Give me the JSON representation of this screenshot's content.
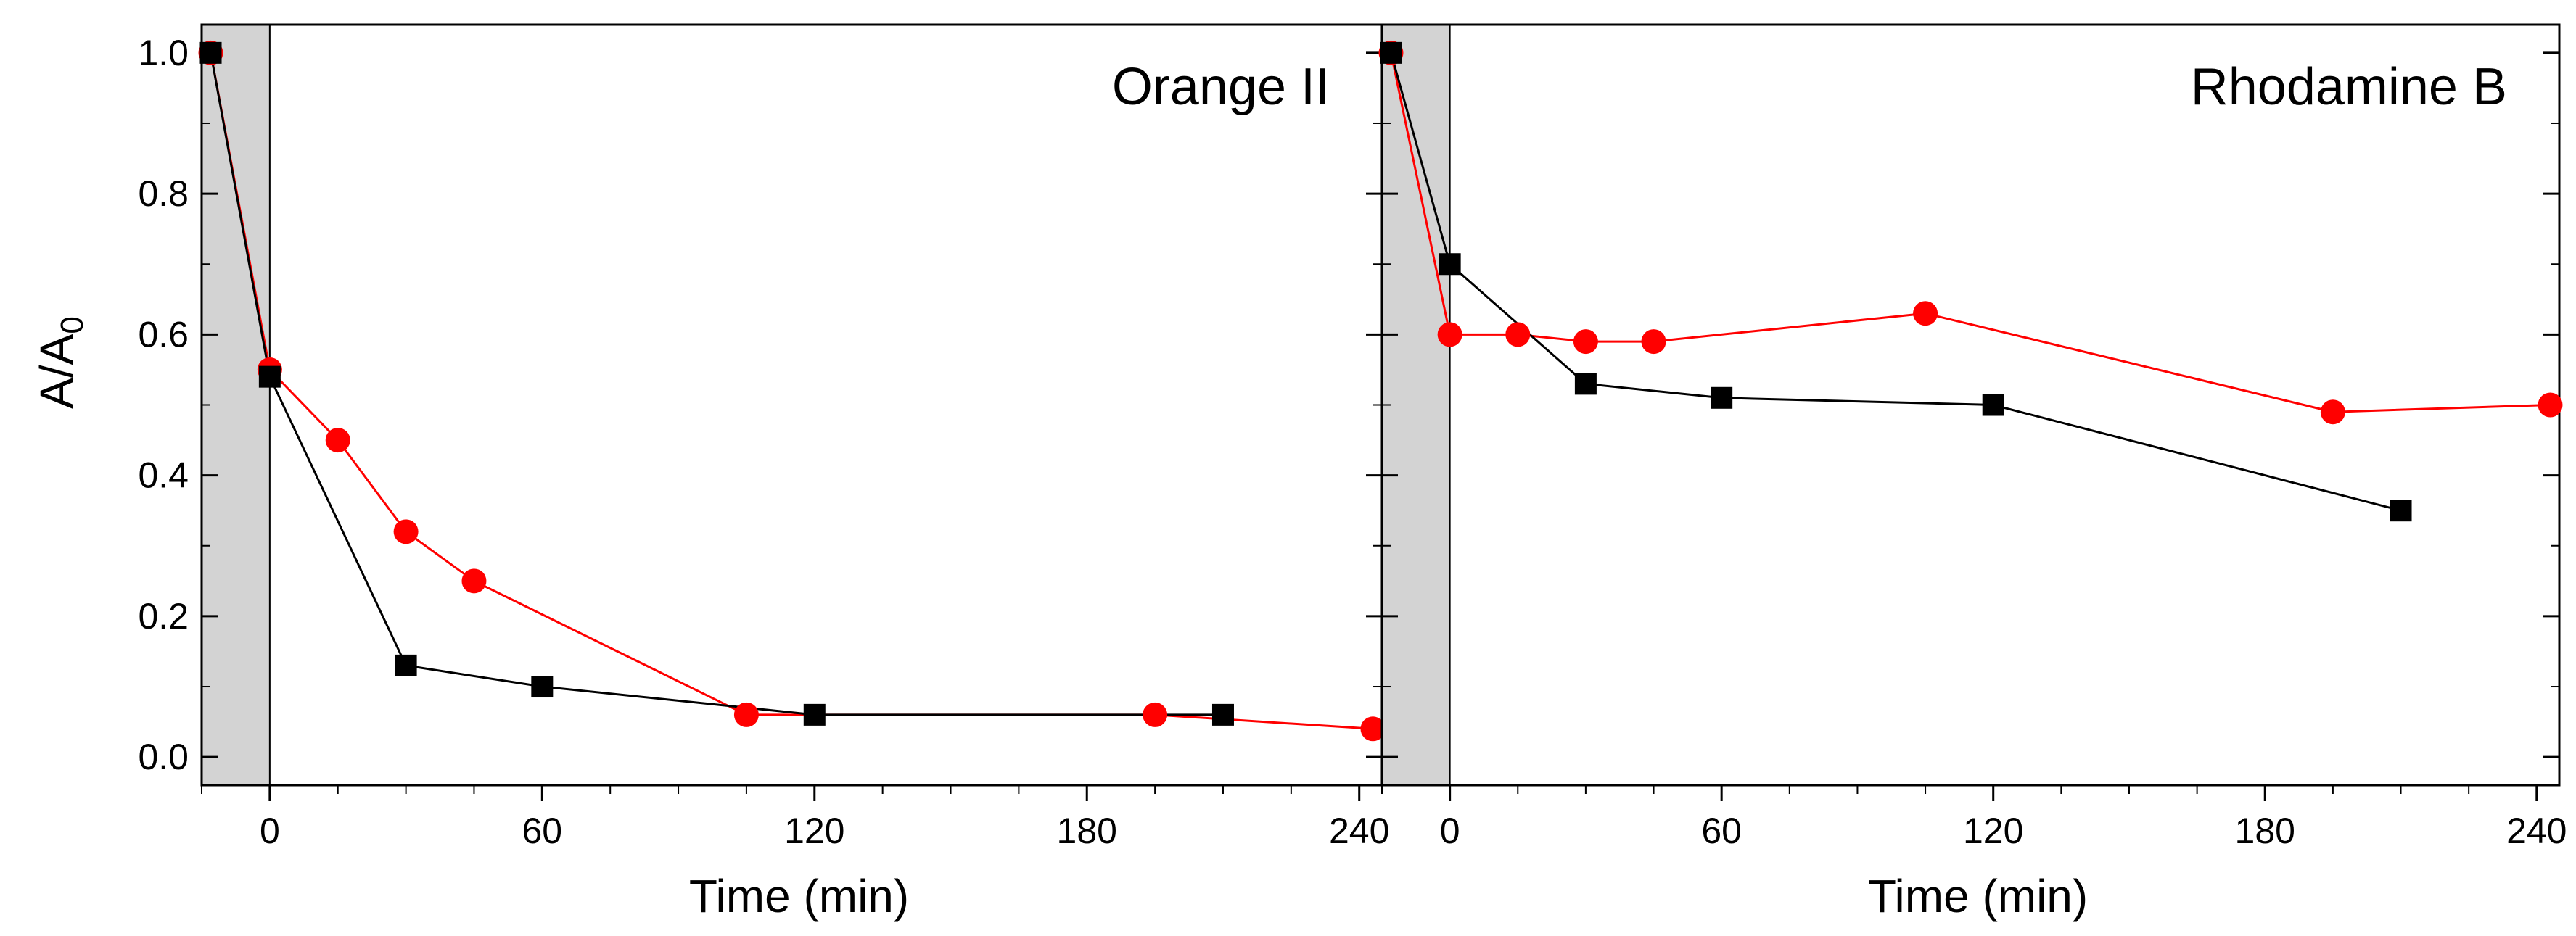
{
  "chart_data": [
    {
      "type": "line",
      "title": "Orange II",
      "xlabel": "Time (min)",
      "ylabel_main": "A/A",
      "ylabel_sub": "0",
      "xlim": [
        -15,
        245
      ],
      "ylim": [
        -0.04,
        1.04
      ],
      "xticks": [
        0,
        60,
        120,
        180,
        240
      ],
      "xtick_labels": [
        "0",
        "60",
        "120",
        "180",
        "240"
      ],
      "yticks": [
        0.0,
        0.2,
        0.4,
        0.6,
        0.8,
        1.0
      ],
      "ytick_labels": [
        "0.0",
        "0.2",
        "0.4",
        "0.6",
        "0.8",
        "1.0"
      ],
      "dark_region": [
        -15,
        0
      ],
      "series": [
        {
          "name": "black-squares",
          "color": "#000000",
          "marker": "square",
          "x": [
            -13,
            0,
            30,
            60,
            120,
            210
          ],
          "y": [
            1.0,
            0.54,
            0.13,
            0.1,
            0.06,
            0.06
          ]
        },
        {
          "name": "red-circles",
          "color": "#ff0000",
          "marker": "circle",
          "x": [
            -13,
            0,
            15,
            30,
            45,
            105,
            195,
            243
          ],
          "y": [
            1.0,
            0.55,
            0.45,
            0.32,
            0.25,
            0.06,
            0.06,
            0.04
          ]
        }
      ]
    },
    {
      "type": "line",
      "title": "Rhodamine B",
      "xlabel": "Time (min)",
      "xlim": [
        -15,
        245
      ],
      "ylim": [
        -0.04,
        1.04
      ],
      "xticks": [
        0,
        60,
        120,
        180,
        240
      ],
      "xtick_labels": [
        "0",
        "60",
        "120",
        "180",
        "240"
      ],
      "yticks": [
        0.0,
        0.2,
        0.4,
        0.6,
        0.8,
        1.0
      ],
      "dark_region": [
        -15,
        0
      ],
      "series": [
        {
          "name": "black-squares",
          "color": "#000000",
          "marker": "square",
          "x": [
            -13,
            0,
            30,
            60,
            120,
            210
          ],
          "y": [
            1.0,
            0.7,
            0.53,
            0.51,
            0.5,
            0.35
          ]
        },
        {
          "name": "red-circles",
          "color": "#ff0000",
          "marker": "circle",
          "x": [
            -13,
            0,
            15,
            30,
            45,
            105,
            195,
            243
          ],
          "y": [
            1.0,
            0.6,
            0.6,
            0.59,
            0.59,
            0.63,
            0.49,
            0.5
          ]
        }
      ]
    }
  ]
}
